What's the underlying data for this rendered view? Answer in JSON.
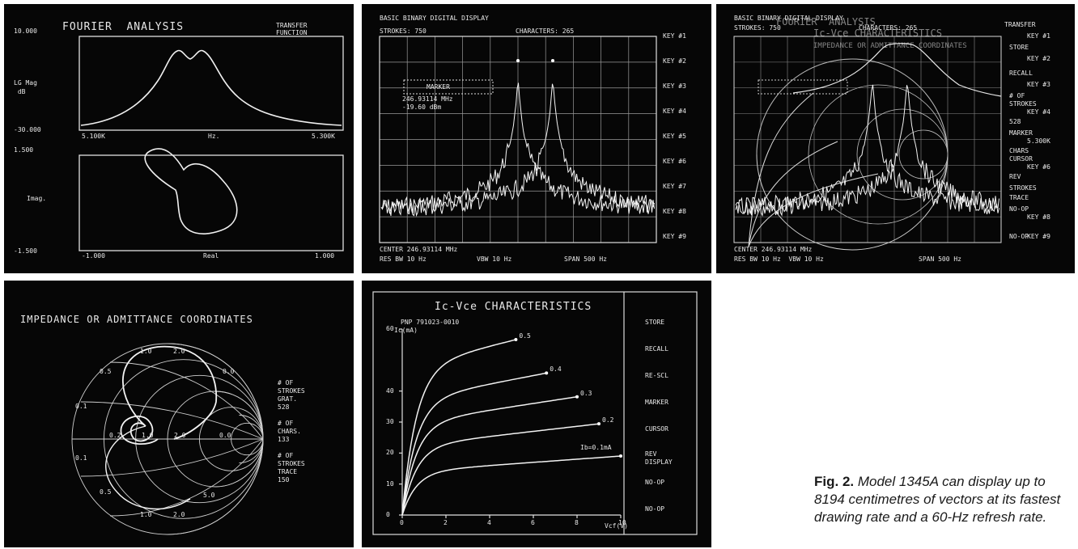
{
  "panel1": {
    "title": "FOURIER  ANALYSIS",
    "subtitle": "TRANSFER\nFUNCTION",
    "top": {
      "y_label": "LG Mag\n dB",
      "y_top": "10.000",
      "y_bottom": "-30.000",
      "x_left": "5.100K",
      "x_mid": "Hz.",
      "x_right": "5.300K"
    },
    "bottom": {
      "y_label": "Imag.",
      "y_top": "1.500",
      "y_bottom": "-1.500",
      "x_left": "-1.000",
      "x_mid": "Real",
      "x_right": "1.000"
    }
  },
  "panel2": {
    "title": "BASIC BINARY DIGITAL DISPLAY",
    "strokes": "STROKES: 750",
    "characters": "CHARACTERS: 265",
    "marker_box": "MARKER",
    "marker_freq": "246.93114 MHz",
    "marker_level": "-19.60 dBm",
    "keys": [
      "KEY #1",
      "KEY #2",
      "KEY #3",
      "KEY #4",
      "KEY #5",
      "KEY #6",
      "KEY #7",
      "KEY #8",
      "KEY #9"
    ],
    "center": "CENTER 246.93114 MHz",
    "res_bw": "RES BW 10 Hz",
    "vbw": "VBW 10 Hz",
    "span": "SPAN 500 Hz"
  },
  "panel3": {
    "line1": "BASIC BINARY DIGITAL DISPLAY",
    "line2": "STROKES: 750",
    "line3": "CHARACTERS: 265",
    "overlay_title": "FOURIER  ANALYSIS",
    "overlay_title2": "Ic-Vce CHARACTERISTICS",
    "overlay_title3": "IMPEDANCE OR ADMITTANCE COORDINATES",
    "bottom_line": "CENTER 246.93114 MHz",
    "bottom_line2": "RES BW 10 Hz  VBW 10 Hz",
    "span": "SPAN 500 Hz",
    "right_labels": [
      "TRANSFER",
      "KEY #1",
      "STORE",
      "KEY #2",
      "RECALL",
      "KEY #3",
      "# OF",
      "STROKES",
      "KEY #4",
      "528",
      "MARKER",
      "5.300K",
      "CHARS",
      "CURSOR",
      "KEY #6",
      "REV",
      "STROKES",
      "TRACE",
      "NO-OP",
      "KEY #8",
      "NO-OP",
      "KEY #9"
    ]
  },
  "panel4": {
    "title": "IMPEDANCE OR ADMITTANCE COORDINATES",
    "labels": {
      "a": "1.0",
      "b": "2.0",
      "c": "0.5",
      "d": "0.0",
      "e": "0.1",
      "f": "0.2",
      "g": "1.0",
      "h": "2.0",
      "i": "0.0",
      "j": "0.1",
      "k": "0.5",
      "l": "5.0",
      "m": "1.0",
      "n": "2.0"
    },
    "stats": "# OF\nSTROKES\nGRAT.\n528\n\n# OF\nCHARS.\n133\n\n# OF\nSTROKES\nTRACE\n150"
  },
  "panel5": {
    "title": "Ic-Vce CHARACTERISTICS",
    "device": "PNP 791023-0010",
    "y_axis": "Ic(mA)",
    "x_axis": "Vcf(V)",
    "y_ticks": [
      "60",
      "40",
      "30",
      "20",
      "10",
      "0"
    ],
    "x_ticks": [
      "0",
      "2",
      "4",
      "6",
      "8",
      "10"
    ],
    "curve_labels": [
      "0.5",
      "0.4",
      "0.3",
      "0.2",
      "Ib=0.1mA"
    ],
    "menu": [
      "STORE",
      "RECALL",
      "RE-SCL",
      "MARKER",
      "CURSOR",
      "REV\nDISPLAY",
      "NO-OP",
      "NO-OP"
    ]
  },
  "caption": {
    "bold": "Fig. 2.",
    "text": " Model 1345A can display up to 8194 centimetres of vectors at its fastest drawing rate and a 60-Hz refresh rate."
  }
}
